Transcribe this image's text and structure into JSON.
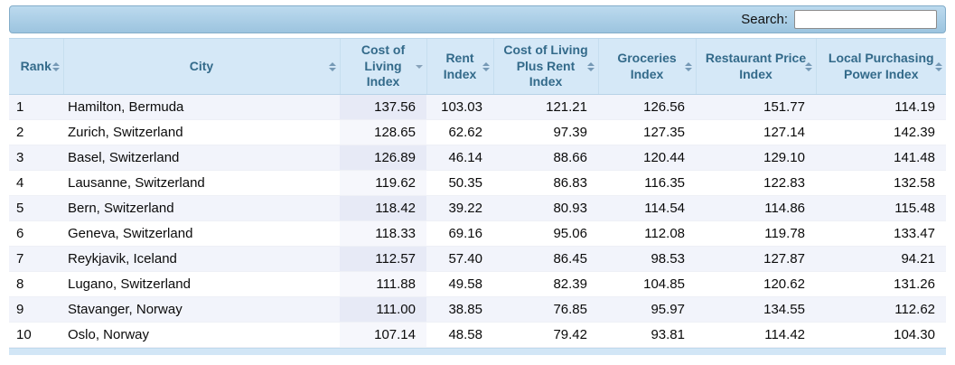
{
  "search": {
    "label": "Search:",
    "value": ""
  },
  "table": {
    "sorted_column_index": 2,
    "column_keys": [
      "rank",
      "city",
      "cost_of_living_index",
      "rent_index",
      "cost_of_living_plus_rent_index",
      "groceries_index",
      "restaurant_price_index",
      "local_purchasing_power_index"
    ],
    "columns": [
      {
        "label": "Rank",
        "sort": "none"
      },
      {
        "label": "City",
        "sort": "none"
      },
      {
        "label": "Cost of Living Index",
        "sort": "desc"
      },
      {
        "label": "Rent Index",
        "sort": "none"
      },
      {
        "label": "Cost of Living Plus Rent Index",
        "sort": "none"
      },
      {
        "label": "Groceries Index",
        "sort": "none"
      },
      {
        "label": "Restaurant Price Index",
        "sort": "none"
      },
      {
        "label": "Local Purchasing Power Index",
        "sort": "none"
      }
    ],
    "rows": [
      [
        "1",
        "Hamilton, Bermuda",
        "137.56",
        "103.03",
        "121.21",
        "126.56",
        "151.77",
        "114.19"
      ],
      [
        "2",
        "Zurich, Switzerland",
        "128.65",
        "62.62",
        "97.39",
        "127.35",
        "127.14",
        "142.39"
      ],
      [
        "3",
        "Basel, Switzerland",
        "126.89",
        "46.14",
        "88.66",
        "120.44",
        "129.10",
        "141.48"
      ],
      [
        "4",
        "Lausanne, Switzerland",
        "119.62",
        "50.35",
        "86.83",
        "116.35",
        "122.83",
        "132.58"
      ],
      [
        "5",
        "Bern, Switzerland",
        "118.42",
        "39.22",
        "80.93",
        "114.54",
        "114.86",
        "115.48"
      ],
      [
        "6",
        "Geneva, Switzerland",
        "118.33",
        "69.16",
        "95.06",
        "112.08",
        "119.78",
        "133.47"
      ],
      [
        "7",
        "Reykjavik, Iceland",
        "112.57",
        "57.40",
        "86.45",
        "98.53",
        "127.87",
        "94.21"
      ],
      [
        "8",
        "Lugano, Switzerland",
        "111.88",
        "49.58",
        "82.39",
        "104.85",
        "120.62",
        "131.26"
      ],
      [
        "9",
        "Stavanger, Norway",
        "111.00",
        "38.85",
        "76.85",
        "95.97",
        "134.55",
        "112.62"
      ],
      [
        "10",
        "Oslo, Norway",
        "107.14",
        "48.58",
        "79.42",
        "93.81",
        "114.42",
        "104.30"
      ]
    ]
  },
  "colors": {
    "toolbar_gradient_top": "#bcdaee",
    "toolbar_gradient_bottom": "#9cc4df",
    "header_bg": "#d5e8f7",
    "header_text": "#336a8a",
    "row_odd_bg": "#f2f4fb",
    "row_odd_sorted_bg": "#e7eaf6",
    "row_even_bg": "#ffffff",
    "row_even_sorted_bg": "#f6f7fc"
  }
}
